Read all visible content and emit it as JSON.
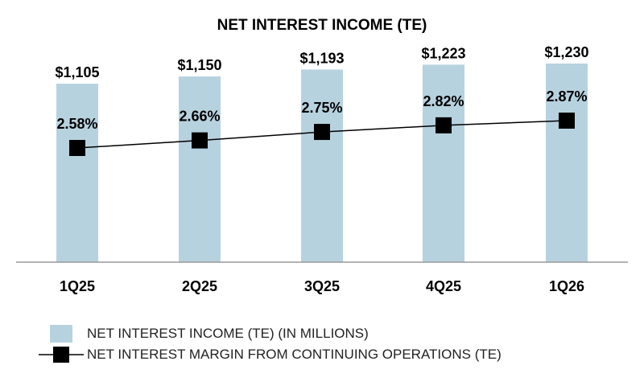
{
  "chart_data": {
    "type": "bar",
    "title": "NET INTEREST INCOME (TE)",
    "categories": [
      "1Q25",
      "2Q25",
      "3Q25",
      "4Q25",
      "1Q26"
    ],
    "series": [
      {
        "name": "NET INTEREST INCOME (TE) (IN MILLIONS)",
        "type": "bar",
        "values": [
          1105,
          1150,
          1193,
          1223,
          1230
        ],
        "labels": [
          "$1,105",
          "$1,150",
          "$1,193",
          "$1,223",
          "$1,230"
        ],
        "color": "#b7d2df"
      },
      {
        "name": "NET INTEREST MARGIN FROM CONTINUING OPERATIONS (TE)",
        "type": "line",
        "values": [
          2.58,
          2.66,
          2.75,
          2.82,
          2.87
        ],
        "labels": [
          "2.58%",
          "2.66%",
          "2.75%",
          "2.82%",
          "2.87%"
        ],
        "color": "#000000"
      }
    ],
    "legend": "bottom-left",
    "grid": false
  },
  "colors": {
    "bar": "#b7d2df",
    "line": "#000000",
    "axis": "#9a9a9a"
  }
}
